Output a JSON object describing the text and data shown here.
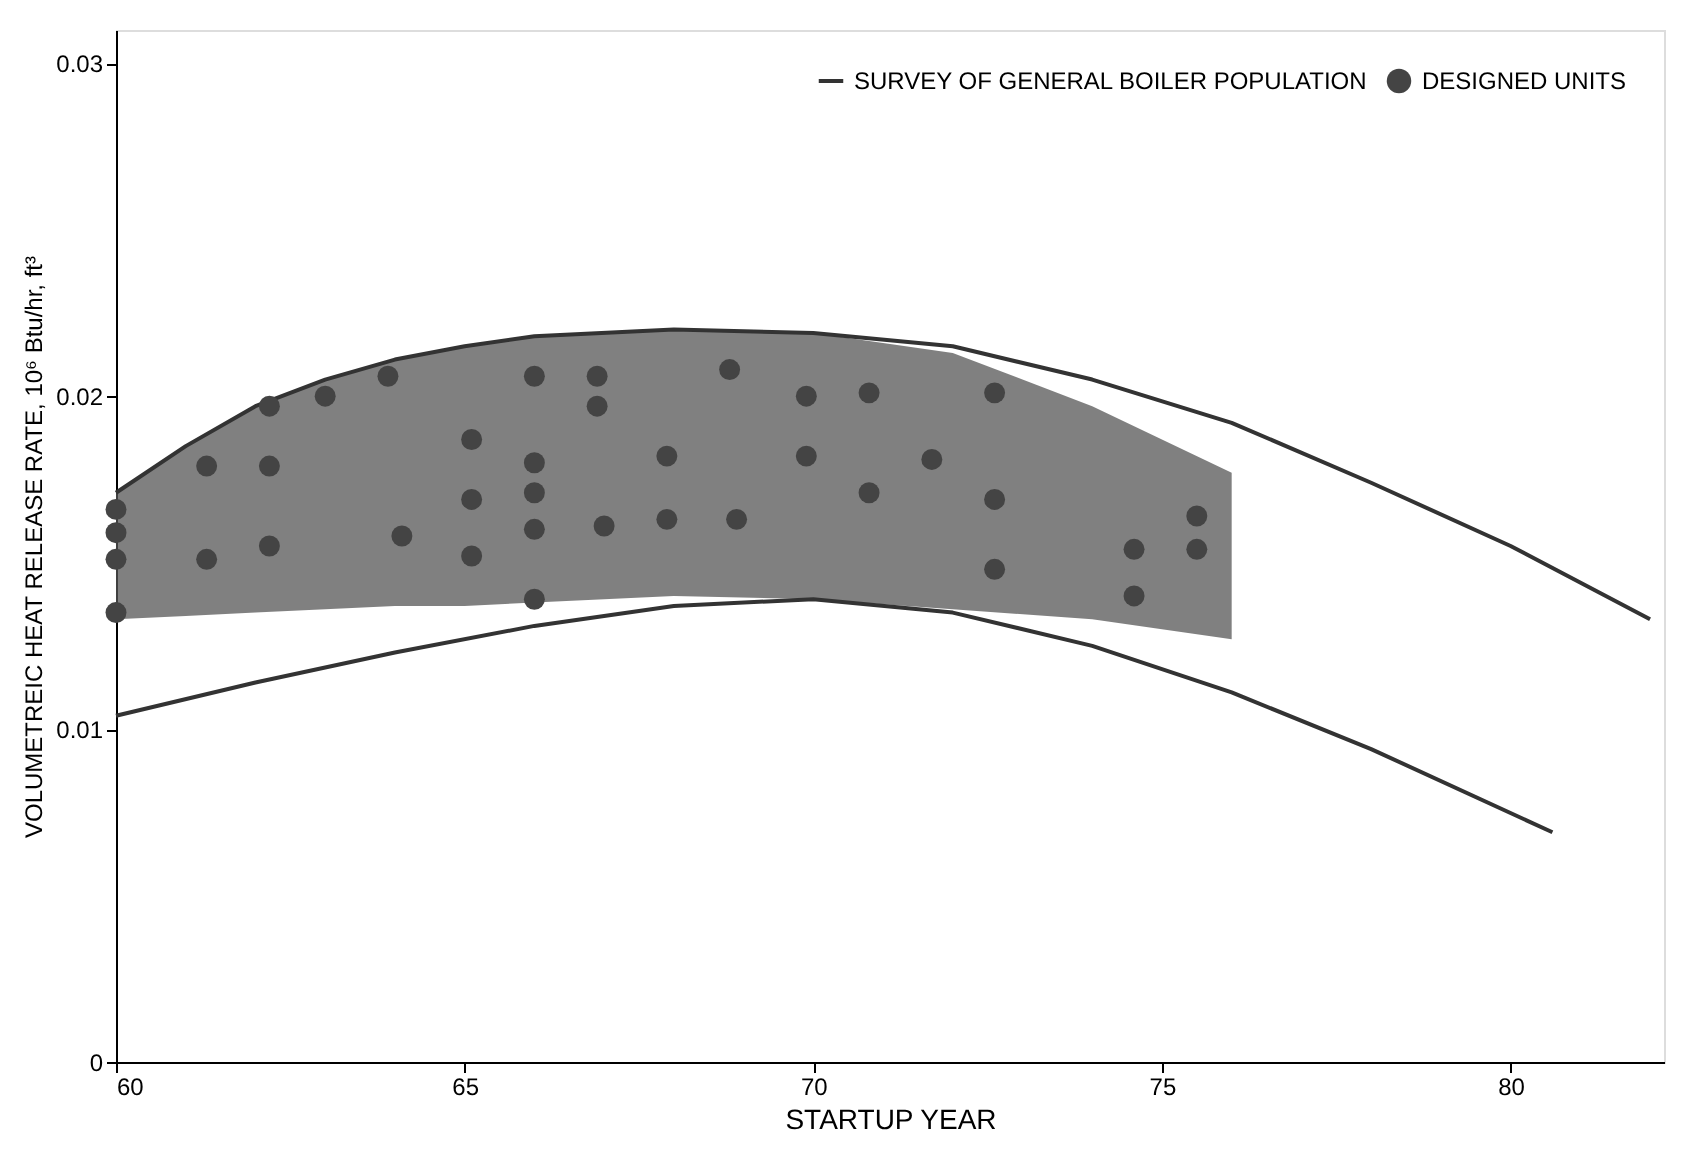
{
  "chart_data": {
    "type": "line",
    "xlabel": "STARTUP YEAR",
    "ylabel": "VOLUMETREIC HEAT RELEASE RATE, 10⁶ Btu/hr, ft³",
    "xlim": [
      60,
      82.2
    ],
    "xticks": [
      60,
      65,
      70,
      75,
      80
    ],
    "ylim": [
      0,
      0.031
    ],
    "yticks": [
      0,
      0.01,
      0.02,
      0.03
    ],
    "grid": false,
    "legend": "top right",
    "series": [
      {
        "name": "SURVEY OF GENERAL BOILER POPULATION",
        "color": "#333333",
        "line_style": "solid",
        "marker": "none",
        "x": [
          60,
          61,
          62,
          63,
          64,
          65,
          66,
          68,
          70,
          72,
          74,
          76,
          78,
          80,
          82
        ],
        "values": [
          0.0171,
          0.0185,
          0.0197,
          0.0205,
          0.0211,
          0.0215,
          0.0218,
          0.022,
          0.0219,
          0.0215,
          0.0205,
          0.0192,
          0.0174,
          0.0155,
          0.0133
        ],
        "lower": [
          0.0133,
          0.0134,
          0.0135,
          0.0136,
          0.0137,
          0.0137,
          0.0138,
          0.014,
          0.0139,
          0.0136,
          0.0133,
          0.0127,
          null,
          null,
          null
        ],
        "upper": [
          0.0171,
          0.0185,
          0.0197,
          0.0205,
          0.0211,
          0.0215,
          0.0218,
          0.022,
          0.0219,
          0.0213,
          0.0197,
          0.0177,
          null,
          null,
          null
        ]
      },
      {
        "color": "#333333",
        "line_style": "solid",
        "marker": "none",
        "x": [
          60,
          62,
          64,
          66,
          68,
          70,
          72,
          74,
          76,
          78,
          80.6
        ],
        "values": [
          0.0104,
          0.0114,
          0.0123,
          0.0131,
          0.0137,
          0.0139,
          0.0135,
          0.0125,
          0.0111,
          0.0094,
          0.0069
        ]
      },
      {
        "type": "scatter",
        "name": "DESIGNED UNITS",
        "color": "#444444",
        "marker": "circle",
        "x": [
          60,
          60,
          60,
          60,
          61.3,
          62.2,
          62.2,
          61.3,
          62.2,
          63.0,
          63.9,
          64.1,
          65.1,
          65.1,
          65.1,
          66.0,
          66.0,
          66.0,
          66.0,
          66.0,
          66.9,
          66.9,
          67.0,
          67.9,
          67.9,
          68.8,
          69.9,
          69.9,
          68.9,
          70.8,
          70.8,
          71.7,
          72.6,
          72.6,
          72.6,
          74.6,
          74.6,
          75.5,
          75.5
        ],
        "values": [
          0.0166,
          0.0159,
          0.0151,
          0.0135,
          0.0179,
          0.0197,
          0.0179,
          0.0151,
          0.0155,
          0.02,
          0.0206,
          0.0158,
          0.0187,
          0.0169,
          0.0152,
          0.0206,
          0.018,
          0.0171,
          0.016,
          0.0139,
          0.0206,
          0.0197,
          0.0161,
          0.0182,
          0.0163,
          0.0208,
          0.02,
          0.0182,
          0.0163,
          0.0201,
          0.0171,
          0.0181,
          0.0201,
          0.0169,
          0.0148,
          0.0154,
          0.014,
          0.0164,
          0.0154
        ]
      }
    ]
  }
}
